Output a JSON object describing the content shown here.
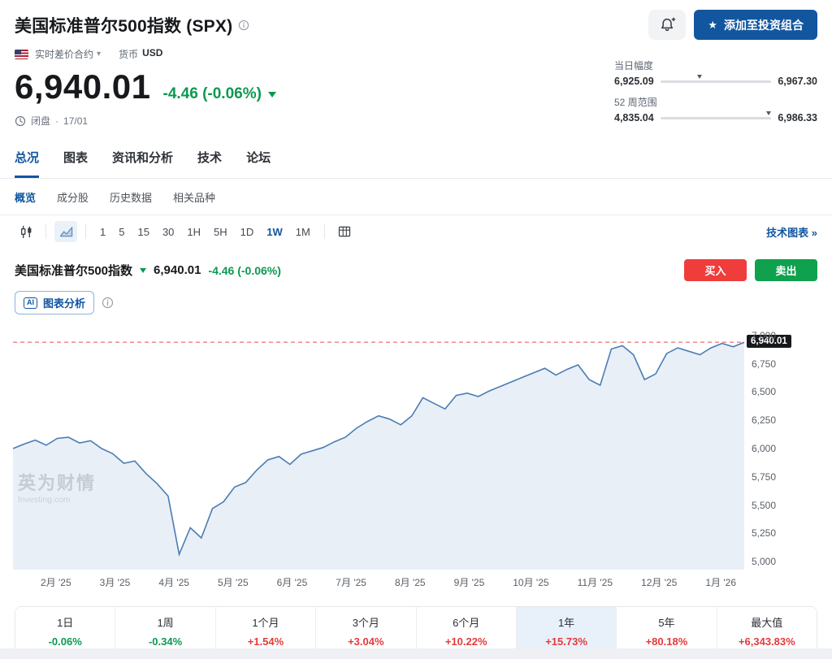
{
  "colors": {
    "accent_blue": "#1256a0",
    "up_red": "#e23b3a",
    "down_green": "#0b9950",
    "buy_red": "#ee3d3b",
    "sell_green": "#0fa14e",
    "chart_line": "#4a7db4",
    "chart_fill": "#e8eff6",
    "dashed_last_price": "#e0524c",
    "price_tag_bg": "#17191c"
  },
  "header": {
    "title": "美国标准普尔500指数 (SPX)",
    "add_portfolio_label": "添加至投资组合",
    "instrument_type": "实时差价合约",
    "currency_label": "货币",
    "currency_code": "USD",
    "price": "6,940.01",
    "change": "-4.46 (-0.06%)",
    "market_status": "闭盘",
    "separator": "·",
    "date": "17/01",
    "day_range": {
      "label": "当日幅度",
      "low_label": "6,925.09",
      "high_label": "6,967.30",
      "low": 6925.09,
      "high": 6967.3,
      "current": 6940.01
    },
    "week52_range": {
      "label": "52 周范围",
      "low_label": "4,835.04",
      "high_label": "6,986.33",
      "low": 4835.04,
      "high": 6986.33,
      "current": 6940.01
    }
  },
  "tabs": [
    {
      "key": "overview",
      "label": "总况",
      "active": true
    },
    {
      "key": "chart",
      "label": "图表"
    },
    {
      "key": "news-analysis",
      "label": "资讯和分析"
    },
    {
      "key": "technical",
      "label": "技术"
    },
    {
      "key": "forum",
      "label": "论坛"
    }
  ],
  "subtabs": [
    {
      "key": "overview",
      "label": "概览",
      "active": true
    },
    {
      "key": "components",
      "label": "成分股"
    },
    {
      "key": "historical",
      "label": "历史数据"
    },
    {
      "key": "related",
      "label": "相关品种"
    }
  ],
  "toolbar": {
    "intervals": [
      {
        "key": "1",
        "label": "1"
      },
      {
        "key": "5",
        "label": "5"
      },
      {
        "key": "15",
        "label": "15"
      },
      {
        "key": "30",
        "label": "30"
      },
      {
        "key": "1h",
        "label": "1H"
      },
      {
        "key": "5h",
        "label": "5H"
      },
      {
        "key": "1d",
        "label": "1D"
      },
      {
        "key": "1w",
        "label": "1W",
        "active": true
      },
      {
        "key": "1m",
        "label": "1M"
      }
    ],
    "tech_chart_label": "技术图表 »"
  },
  "chart_header": {
    "name": "美国标准普尔500指数",
    "price": "6,940.01",
    "change": "-4.46 (-0.06%)",
    "buy_label": "买入",
    "sell_label": "卖出",
    "ai_badge": "AI",
    "ai_label": "图表分析"
  },
  "watermark": {
    "cn": "英为财情",
    "en": "Investing.com"
  },
  "chart_data": {
    "type": "area",
    "title": "美国标准普尔500指数 (SPX)",
    "interval": "1W",
    "range": "1年",
    "x_labels": [
      "2月 '25",
      "3月 '25",
      "4月 '25",
      "5月 '25",
      "6月 '25",
      "7月 '25",
      "8月 '25",
      "9月 '25",
      "10月 '25",
      "11月 '25",
      "12月 '25",
      "1月 '26"
    ],
    "y_ticks": [
      "7,000",
      "6,750",
      "6,500",
      "6,250",
      "6,000",
      "5,750",
      "5,500",
      "5,250",
      "5,000"
    ],
    "y_tick_values": [
      7000,
      6750,
      6500,
      6250,
      6000,
      5750,
      5500,
      5250,
      5000
    ],
    "y_range": [
      4930,
      7085
    ],
    "grid": false,
    "last_price": 6940.01,
    "last_price_label": "6,940.01",
    "values": [
      6000,
      6040,
      6075,
      6030,
      6090,
      6100,
      6050,
      6070,
      6000,
      5955,
      5870,
      5890,
      5780,
      5690,
      5580,
      5065,
      5300,
      5210,
      5470,
      5530,
      5660,
      5700,
      5810,
      5900,
      5930,
      5860,
      5950,
      5980,
      6010,
      6060,
      6100,
      6180,
      6240,
      6290,
      6260,
      6210,
      6290,
      6450,
      6400,
      6350,
      6470,
      6490,
      6460,
      6510,
      6550,
      6590,
      6630,
      6670,
      6710,
      6650,
      6700,
      6740,
      6610,
      6560,
      6880,
      6910,
      6830,
      6610,
      6660,
      6840,
      6890,
      6860,
      6830,
      6890,
      6930,
      6900,
      6940.01
    ]
  },
  "stats": [
    {
      "key": "1d",
      "label": "1日",
      "value": "-0.06%",
      "dir": "down"
    },
    {
      "key": "1w",
      "label": "1周",
      "value": "-0.34%",
      "dir": "down"
    },
    {
      "key": "1m",
      "label": "1个月",
      "value": "+1.54%",
      "dir": "up"
    },
    {
      "key": "3m",
      "label": "3个月",
      "value": "+3.04%",
      "dir": "up"
    },
    {
      "key": "6m",
      "label": "6个月",
      "value": "+10.22%",
      "dir": "up"
    },
    {
      "key": "1y",
      "label": "1年",
      "value": "+15.73%",
      "dir": "up",
      "active": true
    },
    {
      "key": "5y",
      "label": "5年",
      "value": "+80.18%",
      "dir": "up"
    },
    {
      "key": "max",
      "label": "最大值",
      "value": "+6,343.83%",
      "dir": "up"
    }
  ]
}
